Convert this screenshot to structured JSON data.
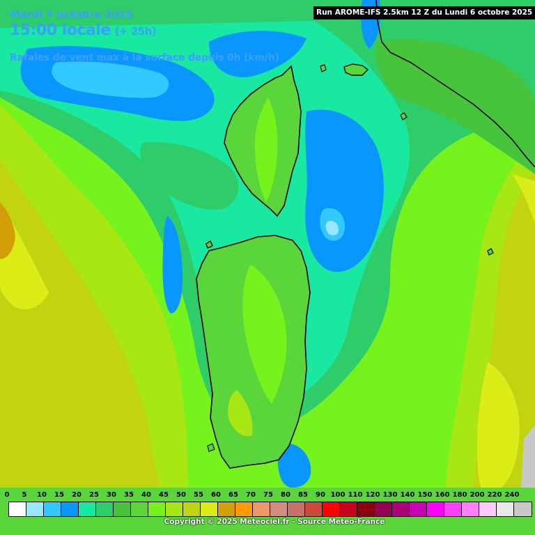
{
  "header": {
    "date": "Mardi 7 octobre 2025",
    "time": "15:00 locale",
    "offset": "(+ 25h)",
    "parameter": "Rafales de vent max à la surface depuis 0h (km/h)"
  },
  "run_banner": "Run AROME-IFS 2.5km 12 Z du Lundi 6 octobre 2025",
  "legend": {
    "unit": "km/h",
    "ticks": [
      "0",
      "5",
      "10",
      "15",
      "20",
      "25",
      "30",
      "35",
      "40",
      "45",
      "50",
      "55",
      "60",
      "65",
      "70",
      "75",
      "80",
      "85",
      "90",
      "100",
      "110",
      "120",
      "130",
      "140",
      "150",
      "160",
      "180",
      "200",
      "220",
      "240"
    ],
    "colors": [
      "#ffffff",
      "#99e6ff",
      "#33c8ff",
      "#0a96ff",
      "#18e8a0",
      "#2fcc6a",
      "#45c43c",
      "#5ad63a",
      "#76f21c",
      "#a8e614",
      "#c2d410",
      "#dcec16",
      "#d29f08",
      "#ff9a00",
      "#f0986a",
      "#d48c7e",
      "#c8706a",
      "#cc4a3a",
      "#ff0000",
      "#c8001a",
      "#8c0010",
      "#960050",
      "#aa0078",
      "#c800b4",
      "#ff00ff",
      "#ff40ff",
      "#ff80ff",
      "#ffc8ff",
      "#e8e8e8",
      "#c8c8c8"
    ]
  },
  "copyright": "Copyright © 2025 Meteociel.fr - Source Meteo-France",
  "map_colors": {
    "sea_base": "#5ad63a",
    "strong_blue": "#0a96ff",
    "light_blue": "#33c8ff",
    "teal": "#18e8a0",
    "green": "#2fcc6a",
    "lime": "#76f21c",
    "yellow_green": "#a8e614",
    "olive": "#c2d410",
    "yellow": "#dcec16",
    "orange": "#d29f08",
    "grey": "#c8c8c8",
    "coast": "#000000"
  }
}
